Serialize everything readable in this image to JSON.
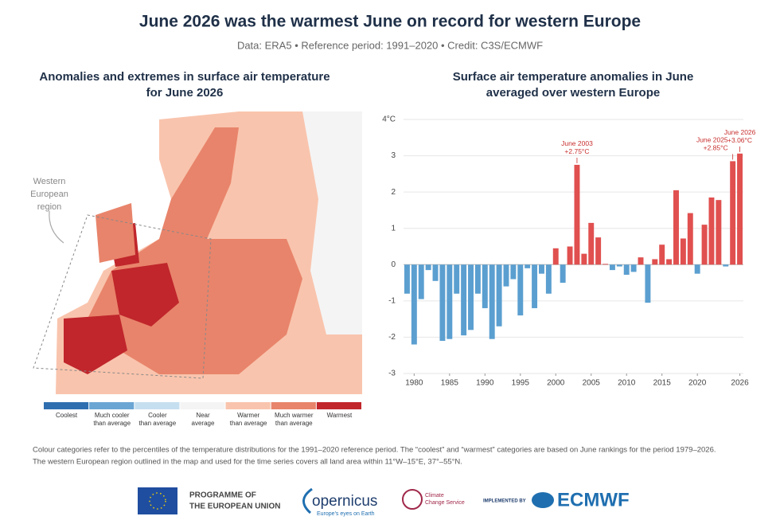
{
  "header": {
    "title": "June 2026 was the warmest June on record for western Europe",
    "subtitle": "Data: ERA5 • Reference period: 1991–2020 • Credit: C3S/ECMWF"
  },
  "map": {
    "title_lines": [
      "Anomalies and extremes in surface air temperature",
      "for June 2026"
    ],
    "region_label_lines": [
      "Western",
      "European",
      "region"
    ],
    "legend": [
      {
        "lines": [
          "Coolest"
        ],
        "color": "#2f6fb0"
      },
      {
        "lines": [
          "Much cooler",
          "than average"
        ],
        "color": "#6aa5d4"
      },
      {
        "lines": [
          "Cooler",
          "than average"
        ],
        "color": "#c6dff0"
      },
      {
        "lines": [
          "Near",
          "average"
        ],
        "color": "#f4f4f4"
      },
      {
        "lines": [
          "Warmer",
          "than average"
        ],
        "color": "#f9c4ad"
      },
      {
        "lines": [
          "Much warmer",
          "than average"
        ],
        "color": "#e8846b"
      },
      {
        "lines": [
          "Warmest"
        ],
        "color": "#c0262c"
      }
    ]
  },
  "chart_data": {
    "type": "bar",
    "title_lines": [
      "Surface air temperature anomalies in June",
      "averaged over western Europe"
    ],
    "x": [
      1979,
      1980,
      1981,
      1982,
      1983,
      1984,
      1985,
      1986,
      1987,
      1988,
      1989,
      1990,
      1991,
      1992,
      1993,
      1994,
      1995,
      1996,
      1997,
      1998,
      1999,
      2000,
      2001,
      2002,
      2003,
      2004,
      2005,
      2006,
      2007,
      2008,
      2009,
      2010,
      2011,
      2012,
      2013,
      2014,
      2015,
      2016,
      2017,
      2018,
      2019,
      2020,
      2021,
      2022,
      2023,
      2024,
      2025,
      2026
    ],
    "values": [
      -0.8,
      -2.2,
      -0.95,
      -0.15,
      -0.45,
      -2.1,
      -2.05,
      -0.8,
      -1.95,
      -1.8,
      -0.8,
      -1.2,
      -2.05,
      -1.7,
      -0.6,
      -0.4,
      -1.4,
      -0.1,
      -1.2,
      -0.25,
      -0.8,
      0.45,
      -0.5,
      0.5,
      2.75,
      0.3,
      1.15,
      0.75,
      0.02,
      -0.15,
      -0.05,
      -0.28,
      -0.2,
      0.2,
      -1.05,
      0.15,
      0.55,
      0.15,
      2.05,
      0.72,
      1.42,
      -0.25,
      1.1,
      1.85,
      1.78,
      -0.05,
      2.85,
      3.06
    ],
    "colors": {
      "positive": "#e0504f",
      "negative": "#5b9fd0"
    },
    "xlim": [
      1978.5,
      2026.5
    ],
    "xticks": [
      1980,
      1985,
      1990,
      1995,
      2000,
      2005,
      2010,
      2015,
      2020,
      2026
    ],
    "ylim": [
      -3,
      4
    ],
    "yticks": [
      -3,
      -2,
      -1,
      0,
      1,
      2,
      3,
      {
        "value": 4,
        "label": "4°C"
      }
    ],
    "grid": true,
    "annotations": [
      {
        "x": 2003,
        "y": 2.75,
        "lines": [
          "June 2003",
          "+2.75°C"
        ]
      },
      {
        "x": 2025,
        "y": 2.85,
        "lines": [
          "June 2025",
          "+2.85°C"
        ]
      },
      {
        "x": 2026,
        "y": 3.06,
        "lines": [
          "June 2026",
          "+3.06°C"
        ]
      }
    ]
  },
  "footer": {
    "note_lines": [
      "Colour categories refer to the percentiles of the temperature distributions for the 1991–2020 reference period. The “coolest” and “warmest” categories are based on June rankings for the period 1979–2026.",
      "The western European region outlined in the map and used for the time series covers all land area within 11°W–15°E, 37°–55°N."
    ],
    "eu_lines": [
      "PROGRAMME OF",
      "THE EUROPEAN UNION"
    ],
    "copernicus": "opernicus",
    "copernicus_tagline": "Europe's eyes on Earth",
    "c3s_lines": [
      "Climate",
      "Change Service"
    ],
    "implemented_by": "IMPLEMENTED BY",
    "ecmwf": "ECMWF"
  }
}
